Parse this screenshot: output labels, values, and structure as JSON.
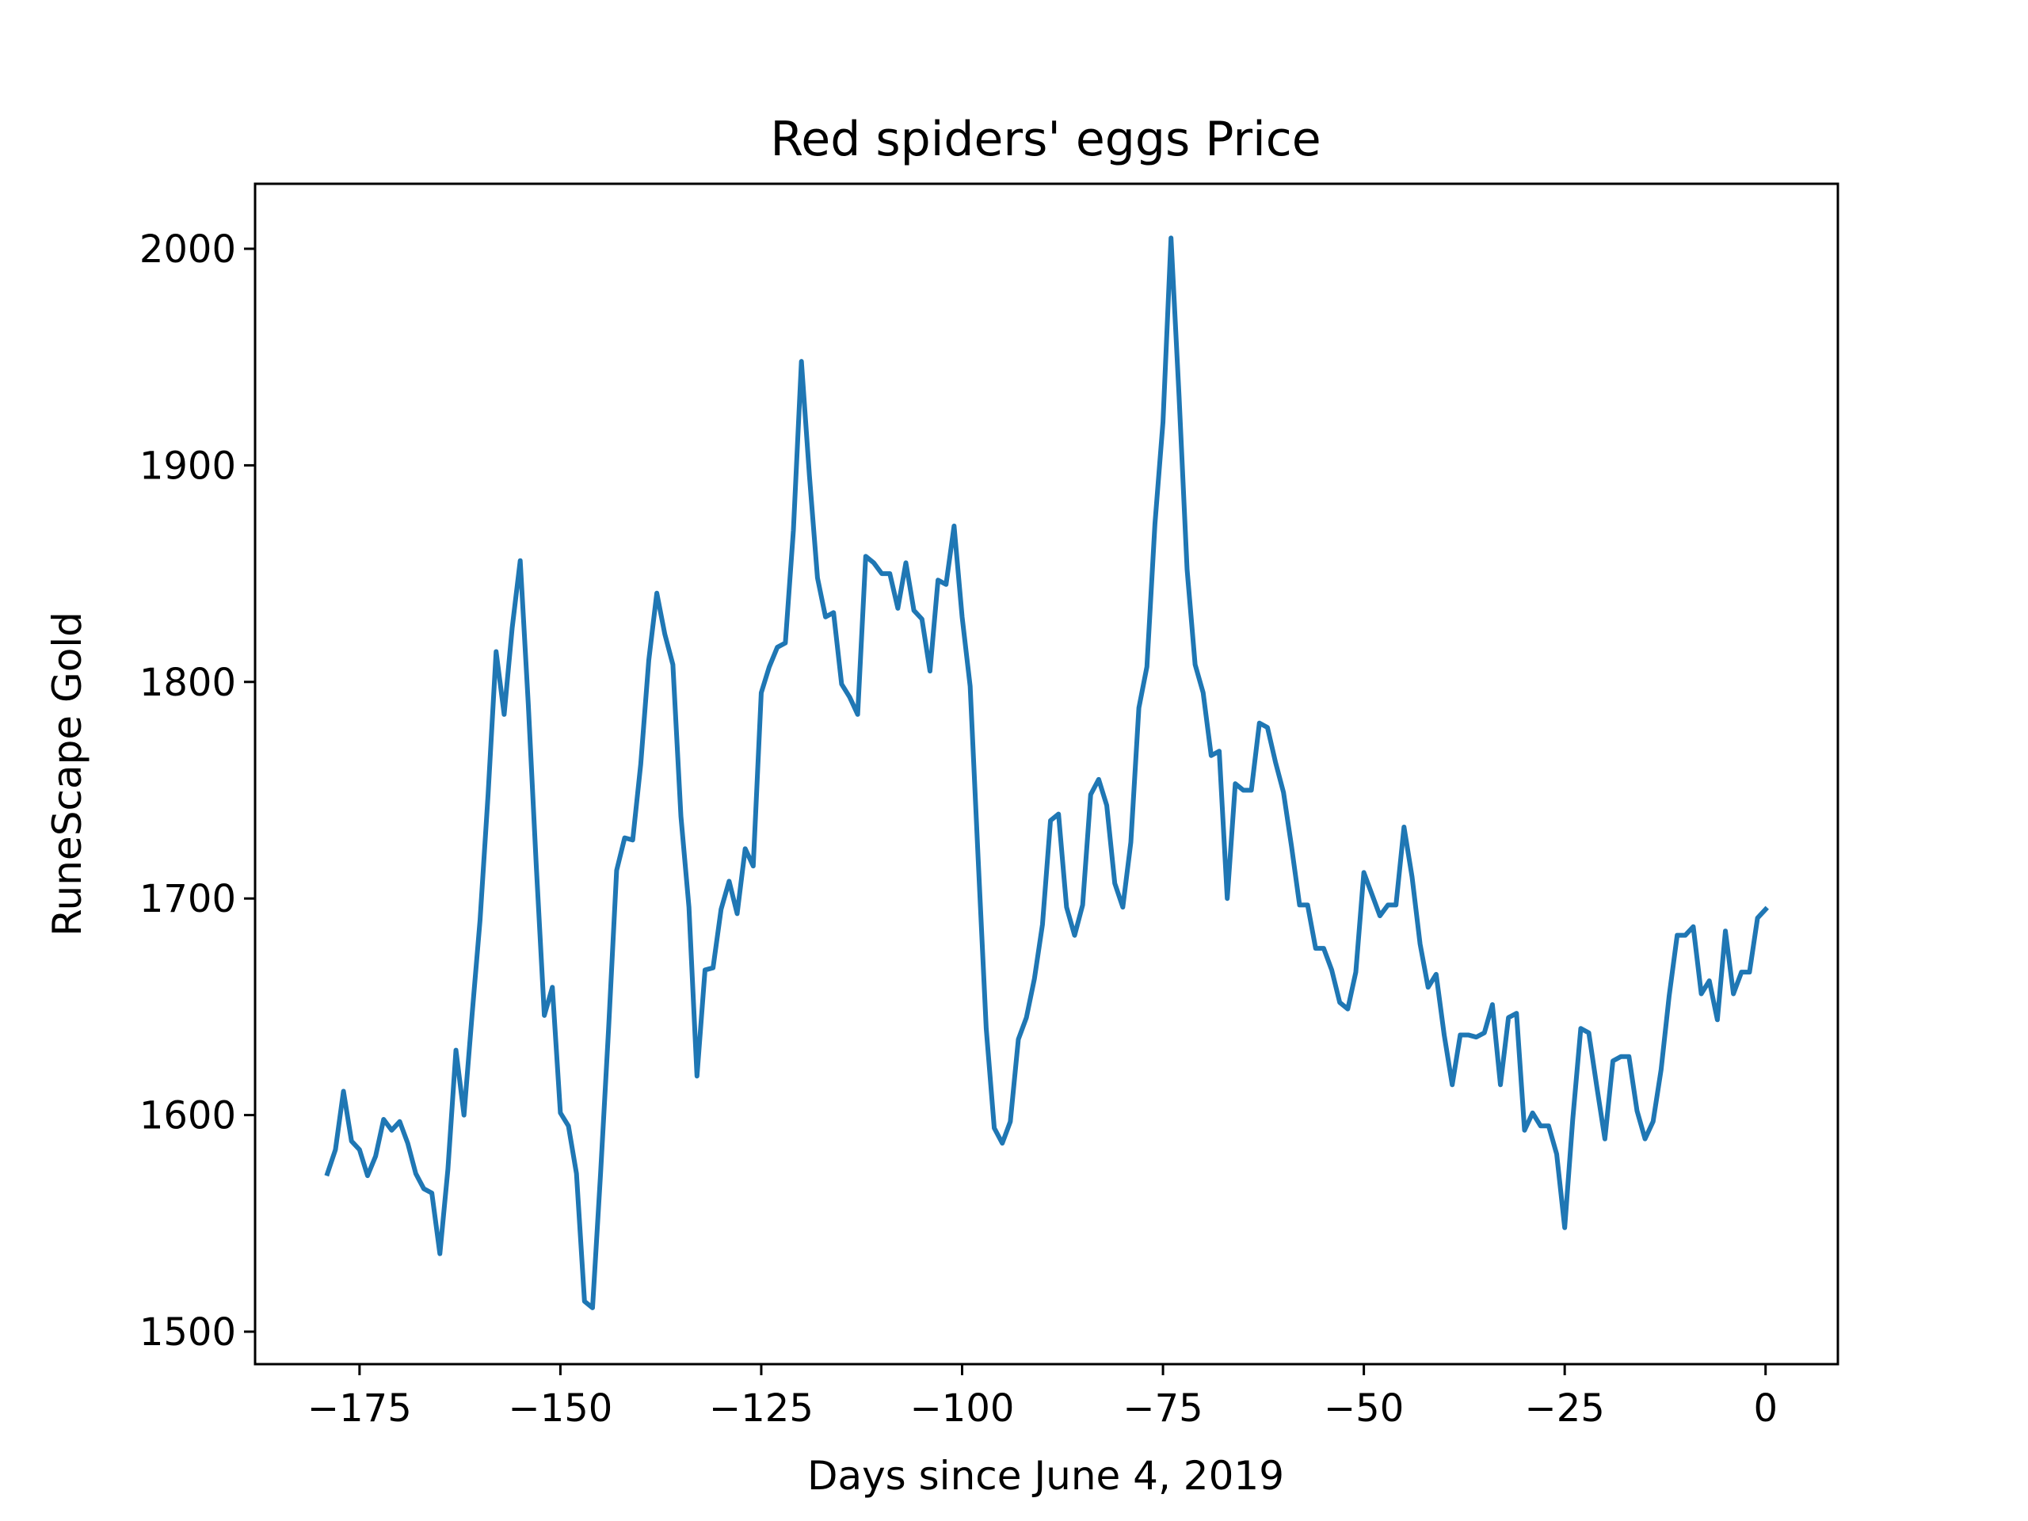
{
  "chart_data": {
    "type": "line",
    "title": "Red spiders' eggs Price",
    "xlabel": "Days since June 4, 2019",
    "ylabel": "RuneScape Gold",
    "xlim": [
      -188,
      9
    ],
    "ylim": [
      1485,
      2030
    ],
    "xticks": [
      -175,
      -150,
      -125,
      -100,
      -75,
      -50,
      -25,
      0
    ],
    "xtick_labels": [
      "−175",
      "−150",
      "−125",
      "−100",
      "−75",
      "−50",
      "−25",
      "0"
    ],
    "yticks": [
      1500,
      1600,
      1700,
      1800,
      1900,
      2000
    ],
    "ytick_labels": [
      "1500",
      "1600",
      "1700",
      "1800",
      "1900",
      "2000"
    ],
    "grid": false,
    "series": [
      {
        "color": "#1f77b4",
        "x": [
          -179,
          -178,
          -177,
          -176,
          -175,
          -174,
          -173,
          -172,
          -171,
          -170,
          -169,
          -168,
          -167,
          -166,
          -165,
          -164,
          -163,
          -162,
          -161,
          -160,
          -159,
          -158,
          -157,
          -156,
          -155,
          -154,
          -153,
          -152,
          -151,
          -150,
          -149,
          -148,
          -147,
          -146,
          -145,
          -144,
          -143,
          -142,
          -141,
          -140,
          -139,
          -138,
          -137,
          -136,
          -135,
          -134,
          -133,
          -132,
          -131,
          -130,
          -129,
          -128,
          -127,
          -126,
          -125,
          -124,
          -123,
          -122,
          -121,
          -120,
          -119,
          -118,
          -117,
          -116,
          -115,
          -114,
          -113,
          -112,
          -111,
          -110,
          -109,
          -108,
          -107,
          -106,
          -105,
          -104,
          -103,
          -102,
          -101,
          -100,
          -99,
          -98,
          -97,
          -96,
          -95,
          -94,
          -93,
          -92,
          -91,
          -90,
          -89,
          -88,
          -87,
          -86,
          -85,
          -84,
          -83,
          -82,
          -81,
          -80,
          -79,
          -78,
          -77,
          -76,
          -75,
          -74,
          -73,
          -72,
          -71,
          -70,
          -69,
          -68,
          -67,
          -66,
          -65,
          -64,
          -63,
          -62,
          -61,
          -60,
          -59,
          -58,
          -57,
          -56,
          -55,
          -54,
          -53,
          -52,
          -51,
          -50,
          -49,
          -48,
          -47,
          -46,
          -45,
          -44,
          -43,
          -42,
          -41,
          -40,
          -39,
          -38,
          -37,
          -36,
          -35,
          -34,
          -33,
          -32,
          -31,
          -30,
          -29,
          -28,
          -27,
          -26,
          -25,
          -24,
          -23,
          -22,
          -21,
          -20,
          -19,
          -18,
          -17,
          -16,
          -15,
          -14,
          -13,
          -12,
          -11,
          -10,
          -9,
          -8,
          -7,
          -6,
          -5,
          -4,
          -3,
          -2,
          -1,
          0
        ],
        "y": [
          1573,
          1584,
          1611,
          1588,
          1584,
          1572,
          1581,
          1598,
          1593,
          1597,
          1587,
          1573,
          1566,
          1564,
          1536,
          1575,
          1630,
          1600,
          1646,
          1690,
          1748,
          1814,
          1785,
          1825,
          1856,
          1790,
          1715,
          1646,
          1659,
          1601,
          1595,
          1573,
          1514,
          1511,
          1573,
          1640,
          1713,
          1728,
          1727,
          1762,
          1810,
          1841,
          1822,
          1808,
          1738,
          1696,
          1618,
          1667,
          1668,
          1695,
          1708,
          1693,
          1723,
          1715,
          1795,
          1807,
          1816,
          1818,
          1870,
          1948,
          1895,
          1848,
          1830,
          1832,
          1799,
          1793,
          1785,
          1858,
          1855,
          1850,
          1850,
          1834,
          1855,
          1833,
          1829,
          1805,
          1847,
          1845,
          1872,
          1830,
          1798,
          1718,
          1640,
          1594,
          1587,
          1597,
          1635,
          1645,
          1663,
          1688,
          1736,
          1739,
          1696,
          1683,
          1697,
          1748,
          1755,
          1743,
          1707,
          1696,
          1726,
          1788,
          1807,
          1873,
          1920,
          2005,
          1932,
          1852,
          1808,
          1795,
          1766,
          1768,
          1700,
          1753,
          1750,
          1750,
          1781,
          1779,
          1763,
          1749,
          1724,
          1697,
          1697,
          1677,
          1677,
          1667,
          1652,
          1649,
          1666,
          1712,
          1702,
          1692,
          1697,
          1697,
          1733,
          1710,
          1679,
          1659,
          1665,
          1637,
          1614,
          1637,
          1637,
          1636,
          1638,
          1651,
          1614,
          1645,
          1647,
          1593,
          1601,
          1595,
          1595,
          1582,
          1548,
          1598,
          1640,
          1638,
          1613,
          1589,
          1625,
          1627,
          1627,
          1602,
          1589,
          1597,
          1621,
          1655,
          1683,
          1683,
          1687,
          1656,
          1662,
          1644,
          1685,
          1656,
          1666,
          1666,
          1691,
          1695
        ]
      }
    ]
  }
}
